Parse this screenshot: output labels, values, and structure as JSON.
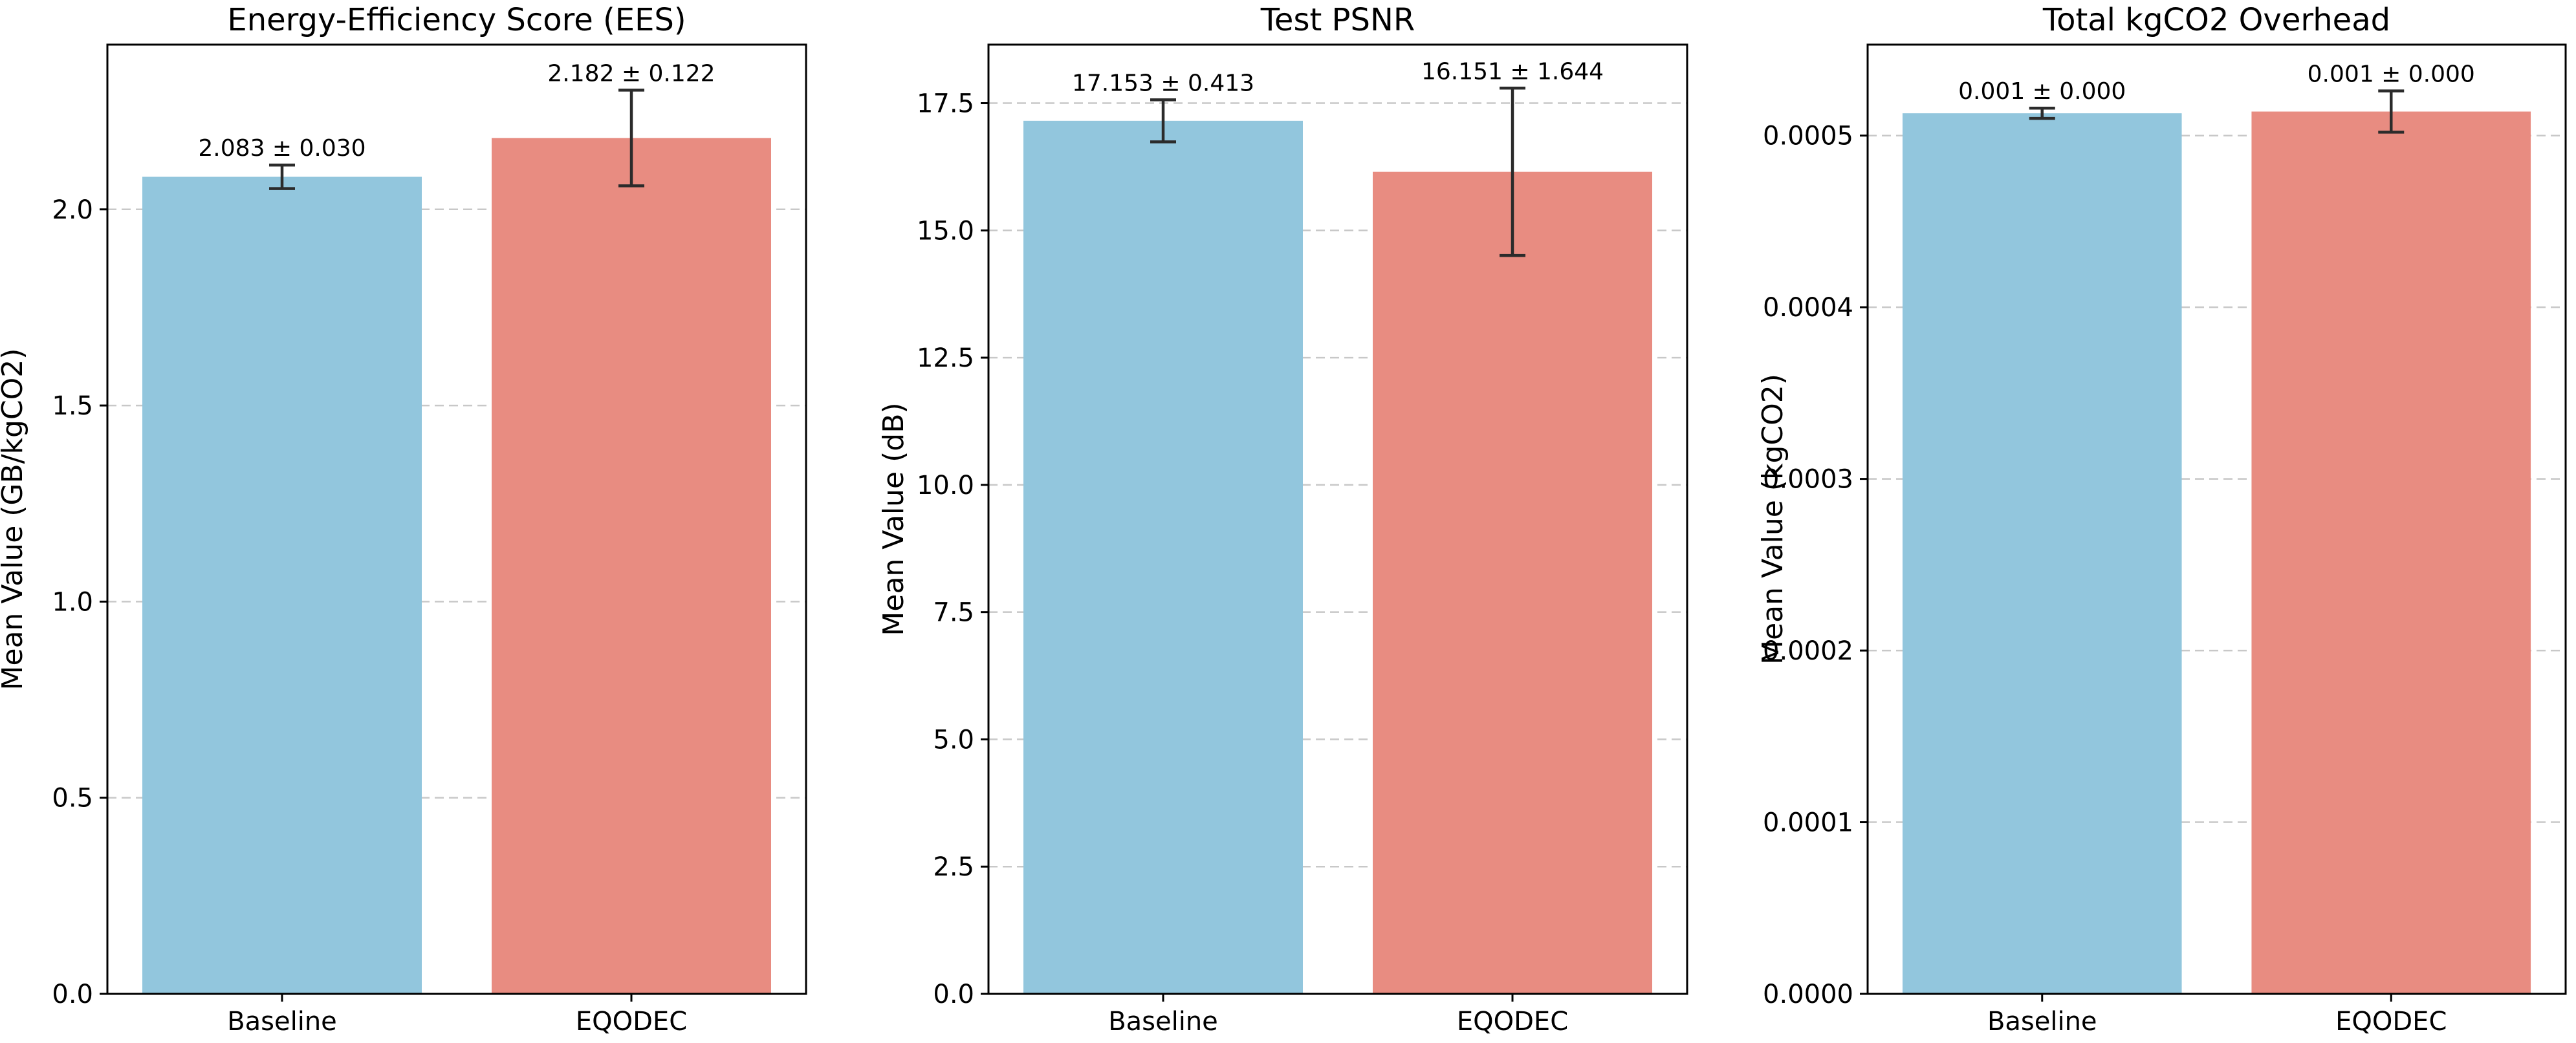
{
  "chart_data": [
    {
      "type": "bar",
      "title": "Energy-Efficiency Score (EES)",
      "xlabel": "",
      "ylabel": "Mean Value (GB/kgCO2)",
      "categories": [
        "Baseline",
        "EQODEC"
      ],
      "values": [
        2.083,
        2.182
      ],
      "errors": [
        0.03,
        0.122
      ],
      "data_labels": [
        "2.083 ± 0.030",
        "2.182 ± 0.122"
      ],
      "colors": [
        "#92c6dd",
        "#e88c81"
      ],
      "ylim": [
        0,
        2.42
      ],
      "yticks": [
        0.0,
        0.5,
        1.0,
        1.5,
        2.0
      ],
      "ytick_labels": [
        "0.0",
        "0.5",
        "1.0",
        "1.5",
        "2.0"
      ],
      "grid": true
    },
    {
      "type": "bar",
      "title": "Test PSNR",
      "xlabel": "",
      "ylabel": "Mean Value (dB)",
      "categories": [
        "Baseline",
        "EQODEC"
      ],
      "values": [
        17.153,
        16.151
      ],
      "errors": [
        0.413,
        1.644
      ],
      "data_labels": [
        "17.153 ± 0.413",
        "16.151 ± 1.644"
      ],
      "colors": [
        "#92c6dd",
        "#e88c81"
      ],
      "ylim": [
        0,
        18.65
      ],
      "yticks": [
        0.0,
        2.5,
        5.0,
        7.5,
        10.0,
        12.5,
        15.0,
        17.5
      ],
      "ytick_labels": [
        "0.0",
        "2.5",
        "5.0",
        "7.5",
        "10.0",
        "12.5",
        "15.0",
        "17.5"
      ],
      "grid": true
    },
    {
      "type": "bar",
      "title": "Total kgCO2 Overhead",
      "xlabel": "",
      "ylabel": "Mean Value (kgCO2)",
      "categories": [
        "Baseline",
        "EQODEC"
      ],
      "values": [
        0.000513,
        0.000514
      ],
      "errors": [
        3e-06,
        1.2e-05
      ],
      "data_labels": [
        "0.001 ± 0.000",
        "0.001 ± 0.000"
      ],
      "colors": [
        "#92c6dd",
        "#e88c81"
      ],
      "ylim": [
        0,
        0.000553
      ],
      "yticks": [
        0.0,
        0.0001,
        0.0002,
        0.0003,
        0.0004,
        0.0005
      ],
      "ytick_labels": [
        "0.0000",
        "0.0001",
        "0.0002",
        "0.0003",
        "0.0004",
        "0.0005"
      ],
      "grid": true
    }
  ]
}
